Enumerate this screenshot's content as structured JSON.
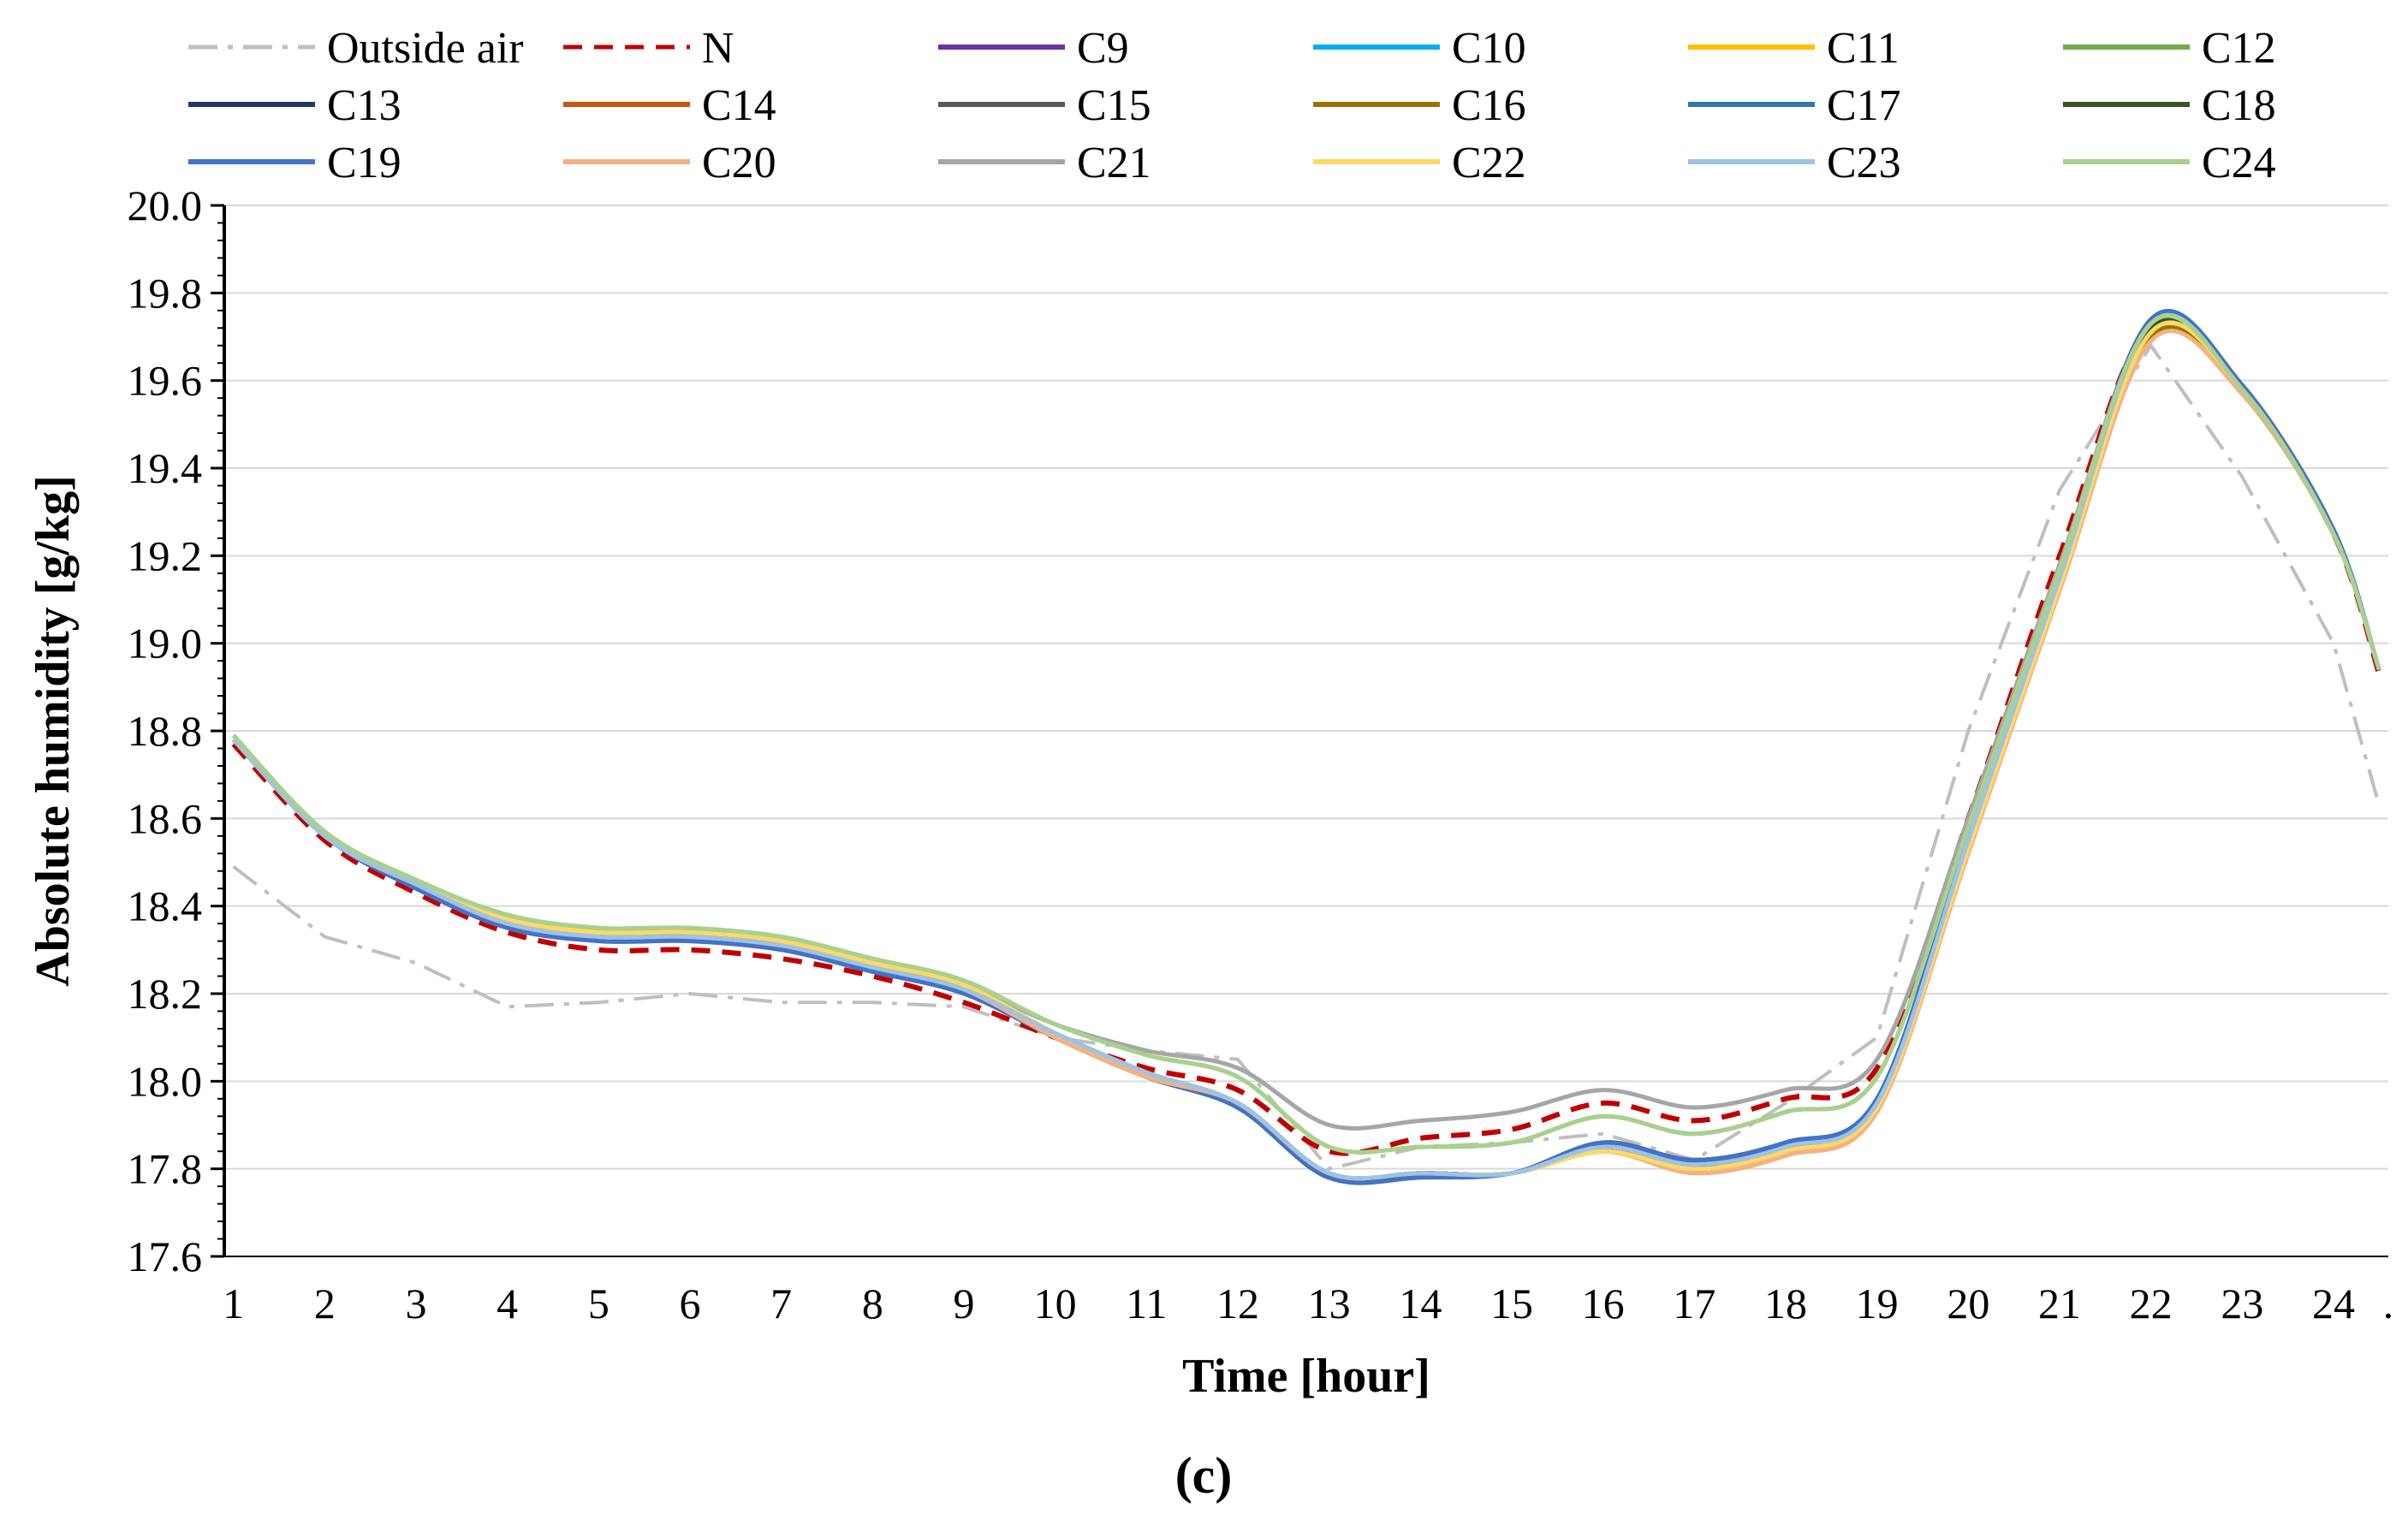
{
  "chart_data": {
    "type": "line",
    "title": "",
    "xlabel": "Time [hour]",
    "ylabel": "Absolute humidity [g/kg]",
    "panel_label": "(c)",
    "x": [
      1,
      2,
      3,
      4,
      5,
      6,
      7,
      8,
      9,
      10,
      11,
      12,
      13,
      14,
      15,
      16,
      17,
      18,
      19,
      20,
      21,
      22,
      23,
      24,
      24.5
    ],
    "xticks": [
      1,
      2,
      3,
      4,
      5,
      6,
      7,
      8,
      9,
      10,
      11,
      12,
      13,
      14,
      15,
      16,
      17,
      18,
      19,
      20,
      21,
      22,
      23,
      24
    ],
    "xtick_labels": [
      "1",
      "2",
      "3",
      "4",
      "5",
      "6",
      "7",
      "8",
      "9",
      "10",
      "11",
      "12",
      "13",
      "14",
      "15",
      "16",
      "17",
      "18",
      "19",
      "20",
      "21",
      "22",
      "23",
      "24"
    ],
    "xtick_extra": ".",
    "xlim": [
      0.9,
      24.6
    ],
    "ylim": [
      17.6,
      20.0
    ],
    "yticks": [
      17.6,
      17.8,
      18.0,
      18.2,
      18.4,
      18.6,
      18.8,
      19.0,
      19.2,
      19.4,
      19.6,
      19.8,
      20.0
    ],
    "ytick_labels": [
      "17.6",
      "17.8",
      "18.0",
      "18.2",
      "18.4",
      "18.6",
      "18.8",
      "19.0",
      "19.2",
      "19.4",
      "19.6",
      "19.8",
      "20.0"
    ],
    "grid": "horizontal",
    "legend_position": "top",
    "series": [
      {
        "name": "Outside air",
        "color": "#BFBFBF",
        "dash": "dashdot",
        "values": [
          18.49,
          18.33,
          18.27,
          18.17,
          18.18,
          18.2,
          18.18,
          18.18,
          18.17,
          18.1,
          18.07,
          18.05,
          17.8,
          17.85,
          17.86,
          17.88,
          17.82,
          17.95,
          18.1,
          18.8,
          19.35,
          19.68,
          19.38,
          19.0,
          18.63
        ]
      },
      {
        "name": "N",
        "color": "#C00000",
        "dash": "dashed",
        "values": [
          18.77,
          18.55,
          18.43,
          18.34,
          18.3,
          18.3,
          18.28,
          18.24,
          18.18,
          18.1,
          18.03,
          17.98,
          17.84,
          17.87,
          17.89,
          17.95,
          17.91,
          17.96,
          18.03,
          18.6,
          19.2,
          19.73,
          19.58,
          19.25,
          18.93
        ]
      },
      {
        "name": "C9",
        "color": "#7030A0",
        "dash": "solid",
        "values": [
          18.78,
          18.56,
          18.45,
          18.36,
          18.33,
          18.33,
          18.31,
          18.26,
          18.21,
          18.1,
          18.01,
          17.94,
          17.78,
          17.79,
          17.79,
          17.85,
          17.81,
          17.85,
          17.94,
          18.54,
          19.14,
          19.72,
          19.58,
          19.25,
          18.94
        ]
      },
      {
        "name": "C10",
        "color": "#00B0F0",
        "dash": "solid",
        "values": [
          18.78,
          18.56,
          18.45,
          18.36,
          18.33,
          18.33,
          18.31,
          18.26,
          18.21,
          18.11,
          18.02,
          17.95,
          17.79,
          17.79,
          17.79,
          17.85,
          17.81,
          17.85,
          17.95,
          18.55,
          19.15,
          19.73,
          19.58,
          19.25,
          18.94
        ]
      },
      {
        "name": "C11",
        "color": "#FFC000",
        "dash": "solid",
        "values": [
          18.78,
          18.56,
          18.45,
          18.37,
          18.34,
          18.34,
          18.32,
          18.27,
          18.22,
          18.11,
          18.02,
          17.95,
          17.79,
          17.79,
          17.79,
          17.84,
          17.8,
          17.84,
          17.94,
          18.53,
          19.13,
          19.71,
          19.58,
          19.25,
          18.94
        ]
      },
      {
        "name": "C12",
        "color": "#70AD47",
        "dash": "solid",
        "values": [
          18.79,
          18.57,
          18.46,
          18.38,
          18.35,
          18.35,
          18.33,
          18.28,
          18.23,
          18.13,
          18.06,
          18.01,
          17.85,
          17.85,
          17.86,
          17.92,
          17.88,
          17.93,
          18.01,
          18.58,
          19.17,
          19.73,
          19.58,
          19.25,
          18.94
        ]
      },
      {
        "name": "C13",
        "color": "#1F3864",
        "dash": "solid",
        "values": [
          18.78,
          18.56,
          18.45,
          18.36,
          18.33,
          18.33,
          18.31,
          18.26,
          18.21,
          18.1,
          18.01,
          17.94,
          17.78,
          17.79,
          17.79,
          17.86,
          17.82,
          17.86,
          17.95,
          18.56,
          19.16,
          19.73,
          19.58,
          19.25,
          18.94
        ]
      },
      {
        "name": "C14",
        "color": "#C55A11",
        "dash": "solid",
        "values": [
          18.78,
          18.56,
          18.45,
          18.36,
          18.34,
          18.34,
          18.32,
          18.27,
          18.21,
          18.1,
          18.01,
          17.95,
          17.79,
          17.79,
          17.79,
          17.84,
          17.8,
          17.84,
          17.94,
          18.53,
          19.13,
          19.7,
          19.57,
          19.25,
          18.94
        ]
      },
      {
        "name": "C15",
        "color": "#595959",
        "dash": "solid",
        "values": [
          18.78,
          18.56,
          18.45,
          18.36,
          18.33,
          18.33,
          18.31,
          18.26,
          18.21,
          18.1,
          18.01,
          17.94,
          17.78,
          17.79,
          17.79,
          17.85,
          17.81,
          17.85,
          17.94,
          18.54,
          19.14,
          19.72,
          19.58,
          19.25,
          18.94
        ]
      },
      {
        "name": "C16",
        "color": "#997300",
        "dash": "solid",
        "values": [
          18.78,
          18.56,
          18.45,
          18.36,
          18.34,
          18.34,
          18.32,
          18.27,
          18.21,
          18.1,
          18.01,
          17.95,
          17.79,
          17.79,
          17.79,
          17.84,
          17.8,
          17.84,
          17.94,
          18.53,
          19.13,
          19.7,
          19.57,
          19.25,
          18.94
        ]
      },
      {
        "name": "C17",
        "color": "#2E75B6",
        "dash": "solid",
        "values": [
          18.78,
          18.56,
          18.45,
          18.36,
          18.33,
          18.33,
          18.31,
          18.26,
          18.21,
          18.1,
          18.01,
          17.94,
          17.78,
          17.79,
          17.79,
          17.86,
          17.82,
          17.86,
          17.96,
          18.56,
          19.16,
          19.73,
          19.58,
          19.25,
          18.94
        ]
      },
      {
        "name": "C18",
        "color": "#375623",
        "dash": "solid",
        "values": [
          18.78,
          18.56,
          18.45,
          18.36,
          18.33,
          18.33,
          18.31,
          18.26,
          18.21,
          18.1,
          18.01,
          17.94,
          17.78,
          17.79,
          17.79,
          17.85,
          17.81,
          17.85,
          17.94,
          18.54,
          19.14,
          19.72,
          19.58,
          19.25,
          18.94
        ]
      },
      {
        "name": "C19",
        "color": "#4472C4",
        "dash": "solid",
        "values": [
          18.78,
          18.56,
          18.44,
          18.35,
          18.32,
          18.32,
          18.3,
          18.25,
          18.2,
          18.1,
          18.01,
          17.94,
          17.78,
          17.78,
          17.79,
          17.86,
          17.82,
          17.86,
          17.96,
          18.57,
          19.17,
          19.74,
          19.59,
          19.26,
          18.94
        ]
      },
      {
        "name": "C20",
        "color": "#F4B183",
        "dash": "solid",
        "values": [
          18.78,
          18.56,
          18.45,
          18.36,
          18.34,
          18.34,
          18.32,
          18.27,
          18.21,
          18.1,
          18.01,
          17.95,
          17.79,
          17.79,
          17.79,
          17.84,
          17.79,
          17.83,
          17.93,
          18.52,
          19.12,
          19.69,
          19.57,
          19.25,
          18.94
        ]
      },
      {
        "name": "C21",
        "color": "#A6A6A6",
        "dash": "solid",
        "values": [
          18.78,
          18.56,
          18.45,
          18.36,
          18.33,
          18.33,
          18.31,
          18.27,
          18.22,
          18.13,
          18.07,
          18.03,
          17.9,
          17.91,
          17.93,
          17.98,
          17.94,
          17.98,
          18.05,
          18.6,
          19.18,
          19.73,
          19.58,
          19.25,
          18.94
        ]
      },
      {
        "name": "C22",
        "color": "#FFD966",
        "dash": "solid",
        "values": [
          18.78,
          18.56,
          18.45,
          18.37,
          18.34,
          18.34,
          18.32,
          18.27,
          18.22,
          18.11,
          18.02,
          17.95,
          17.79,
          17.79,
          17.79,
          17.84,
          17.8,
          17.84,
          17.94,
          18.53,
          19.13,
          19.71,
          19.58,
          19.25,
          18.94
        ]
      },
      {
        "name": "C23",
        "color": "#9DC3E6",
        "dash": "solid",
        "values": [
          18.78,
          18.56,
          18.45,
          18.36,
          18.33,
          18.33,
          18.31,
          18.26,
          18.21,
          18.11,
          18.02,
          17.95,
          17.79,
          17.79,
          17.79,
          17.85,
          17.81,
          17.85,
          17.95,
          18.55,
          19.15,
          19.73,
          19.58,
          19.25,
          18.94
        ]
      },
      {
        "name": "C24",
        "color": "#A9D18E",
        "dash": "solid",
        "values": [
          18.79,
          18.57,
          18.46,
          18.38,
          18.35,
          18.35,
          18.33,
          18.28,
          18.23,
          18.13,
          18.06,
          18.01,
          17.85,
          17.85,
          17.86,
          17.92,
          17.88,
          17.93,
          18.01,
          18.58,
          19.17,
          19.73,
          19.58,
          19.25,
          18.94
        ]
      }
    ]
  }
}
